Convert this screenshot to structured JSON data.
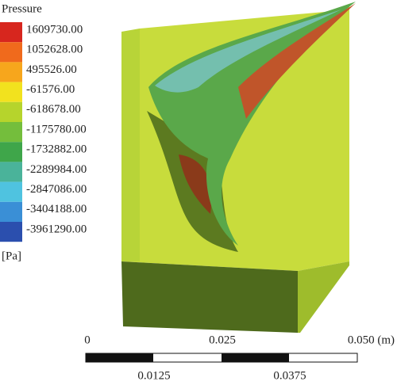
{
  "legend": {
    "title": "Pressure",
    "levels": [
      "1609730.00",
      "1052628.00",
      "495526.00",
      "-61576.00",
      "-618678.00",
      "-1175780.00",
      "-1732882.00",
      "-2289984.00",
      "-2847086.00",
      "-3404188.00",
      "-3961290.00"
    ],
    "unit": "[Pa]"
  },
  "scale_bar": {
    "top_labels": [
      "0",
      "0.025",
      "0.050 (m)"
    ],
    "bottom_labels": [
      "0.0125",
      "0.0375"
    ]
  }
}
